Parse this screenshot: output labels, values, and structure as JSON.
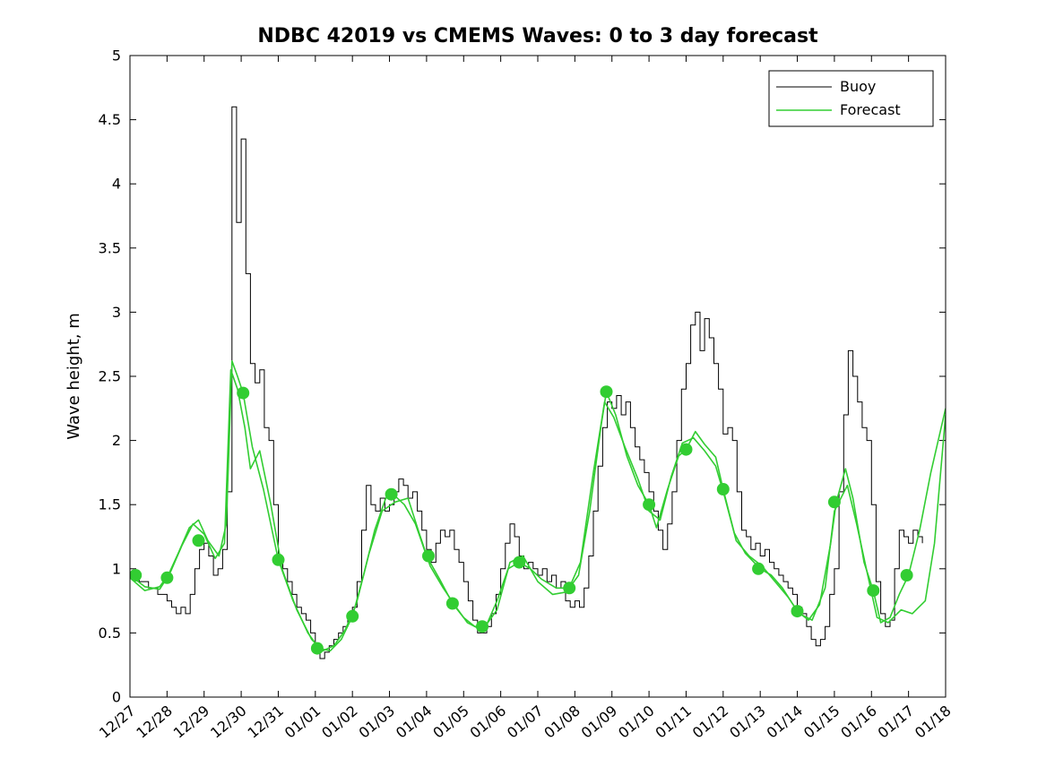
{
  "chart_data": {
    "type": "line",
    "title": "NDBC 42019 vs CMEMS Waves: 0 to 3 day forecast",
    "xlabel": "",
    "ylabel": "Wave height, m",
    "ylim": [
      0,
      5
    ],
    "yticks": [
      0,
      0.5,
      1,
      1.5,
      2,
      2.5,
      3,
      3.5,
      4,
      4.5,
      5
    ],
    "ytick_labels": [
      "0",
      "0.5",
      "1",
      "1.5",
      "2",
      "2.5",
      "3",
      "3.5",
      "4",
      "4.5",
      "5"
    ],
    "x_span_days": 22,
    "xtick_labels": [
      "12/27",
      "12/28",
      "12/29",
      "12/30",
      "12/31",
      "01/01",
      "01/02",
      "01/03",
      "01/04",
      "01/05",
      "01/06",
      "01/07",
      "01/08",
      "01/09",
      "01/10",
      "01/11",
      "01/12",
      "01/13",
      "01/14",
      "01/15",
      "01/16",
      "01/17",
      "01/18"
    ],
    "grid": false,
    "legend": {
      "position": "upper right",
      "entries": [
        {
          "label": "Buoy",
          "color": "#000000"
        },
        {
          "label": "Forecast",
          "color": "#32cd32"
        }
      ]
    },
    "series": [
      {
        "name": "Buoy",
        "type": "step",
        "color": "#000000",
        "line_width": 1,
        "t0_days": 0,
        "dt_days": 0.125,
        "values": [
          0.95,
          0.95,
          0.9,
          0.9,
          0.85,
          0.85,
          0.8,
          0.8,
          0.75,
          0.7,
          0.65,
          0.7,
          0.65,
          0.8,
          1.0,
          1.15,
          1.2,
          1.1,
          0.95,
          1.0,
          1.15,
          1.6,
          4.6,
          3.7,
          4.35,
          3.3,
          2.6,
          2.45,
          2.55,
          2.1,
          2.0,
          1.5,
          1.05,
          1.0,
          0.9,
          0.8,
          0.7,
          0.65,
          0.6,
          0.5,
          0.4,
          0.3,
          0.35,
          0.4,
          0.45,
          0.5,
          0.55,
          0.6,
          0.7,
          0.9,
          1.3,
          1.65,
          1.5,
          1.45,
          1.55,
          1.45,
          1.5,
          1.6,
          1.7,
          1.65,
          1.55,
          1.6,
          1.45,
          1.3,
          1.15,
          1.05,
          1.2,
          1.3,
          1.25,
          1.3,
          1.15,
          1.05,
          0.9,
          0.75,
          0.6,
          0.5,
          0.5,
          0.55,
          0.65,
          0.8,
          1.0,
          1.2,
          1.35,
          1.25,
          1.1,
          1.0,
          1.05,
          1.0,
          0.95,
          1.0,
          0.9,
          0.95,
          0.85,
          0.9,
          0.75,
          0.7,
          0.75,
          0.7,
          0.85,
          1.1,
          1.45,
          1.8,
          2.1,
          2.3,
          2.25,
          2.35,
          2.2,
          2.3,
          2.1,
          1.95,
          1.85,
          1.75,
          1.6,
          1.45,
          1.3,
          1.15,
          1.35,
          1.6,
          2.0,
          2.4,
          2.6,
          2.9,
          3.0,
          2.7,
          2.95,
          2.8,
          2.6,
          2.4,
          2.05,
          2.1,
          2.0,
          1.6,
          1.3,
          1.25,
          1.15,
          1.2,
          1.1,
          1.15,
          1.05,
          1.0,
          0.95,
          0.9,
          0.85,
          0.8,
          0.7,
          0.65,
          0.55,
          0.45,
          0.4,
          0.45,
          0.55,
          0.8,
          1.0,
          1.6,
          2.2,
          2.7,
          2.5,
          2.3,
          2.1,
          2.0,
          1.5,
          0.9,
          0.65,
          0.55,
          0.6,
          1.0,
          1.3,
          1.25,
          1.2,
          1.3,
          1.25,
          1.2
        ]
      },
      {
        "name": "Forecast run 1",
        "type": "line",
        "color": "#32cd32",
        "line_width": 1.6,
        "points": [
          [
            0,
            0.95
          ],
          [
            0.4,
            0.86
          ],
          [
            0.8,
            0.84
          ],
          [
            1,
            0.93
          ],
          [
            1.3,
            1.12
          ],
          [
            1.6,
            1.32
          ],
          [
            1.85,
            1.38
          ],
          [
            2.1,
            1.22
          ],
          [
            2.4,
            1.1
          ],
          [
            2.6,
            1.35
          ],
          [
            2.75,
            2.62
          ],
          [
            2.9,
            2.5
          ],
          [
            3.05,
            2.37
          ],
          [
            3.3,
            1.95
          ],
          [
            3.6,
            1.62
          ],
          [
            4,
            1.07
          ],
          [
            4.4,
            0.75
          ],
          [
            4.8,
            0.5
          ],
          [
            5.1,
            0.38
          ],
          [
            5.4,
            0.36
          ],
          [
            5.7,
            0.45
          ],
          [
            6,
            0.63
          ],
          [
            6.3,
            0.95
          ],
          [
            6.6,
            1.3
          ],
          [
            6.9,
            1.55
          ],
          [
            7.1,
            1.58
          ],
          [
            7.4,
            1.5
          ],
          [
            7.7,
            1.35
          ],
          [
            8,
            1.1
          ],
          [
            8.35,
            0.92
          ],
          [
            8.7,
            0.73
          ],
          [
            9,
            0.62
          ],
          [
            9.3,
            0.55
          ],
          [
            9.6,
            0.55
          ],
          [
            9.9,
            0.75
          ],
          [
            10.2,
            1.0
          ],
          [
            10.5,
            1.05
          ],
          [
            10.8,
            1.0
          ],
          [
            11.1,
            0.92
          ],
          [
            11.5,
            0.85
          ],
          [
            11.85,
            0.85
          ],
          [
            12.1,
            0.95
          ],
          [
            12.4,
            1.45
          ],
          [
            12.7,
            2.1
          ],
          [
            12.85,
            2.38
          ],
          [
            13.1,
            2.2
          ],
          [
            13.4,
            1.88
          ],
          [
            13.7,
            1.65
          ],
          [
            14,
            1.5
          ],
          [
            14.2,
            1.32
          ],
          [
            14.5,
            1.62
          ],
          [
            14.8,
            1.88
          ],
          [
            15,
            1.93
          ],
          [
            15.25,
            2.07
          ],
          [
            15.5,
            1.97
          ],
          [
            15.8,
            1.87
          ],
          [
            16,
            1.62
          ],
          [
            16.3,
            1.28
          ],
          [
            16.6,
            1.12
          ],
          [
            17,
            1.0
          ],
          [
            17.3,
            0.95
          ],
          [
            17.6,
            0.85
          ],
          [
            18,
            0.67
          ],
          [
            18.3,
            0.6
          ],
          [
            18.6,
            0.72
          ],
          [
            18.9,
            1.2
          ],
          [
            19.05,
            1.52
          ],
          [
            19.3,
            1.78
          ],
          [
            19.5,
            1.55
          ],
          [
            19.8,
            1.05
          ],
          [
            20.05,
            0.83
          ],
          [
            20.25,
            0.58
          ],
          [
            20.5,
            0.62
          ],
          [
            20.75,
            0.8
          ],
          [
            21,
            0.95
          ],
          [
            21.3,
            1.3
          ],
          [
            21.6,
            1.75
          ],
          [
            22,
            2.25
          ]
        ]
      },
      {
        "name": "Forecast run 2",
        "type": "line",
        "color": "#32cd32",
        "line_width": 1.6,
        "points": [
          [
            0,
            0.93
          ],
          [
            0.4,
            0.83
          ],
          [
            0.8,
            0.86
          ],
          [
            1.1,
            0.98
          ],
          [
            1.4,
            1.18
          ],
          [
            1.7,
            1.35
          ],
          [
            2,
            1.27
          ],
          [
            2.3,
            1.08
          ],
          [
            2.55,
            1.2
          ],
          [
            2.72,
            2.55
          ],
          [
            2.9,
            2.4
          ],
          [
            3.1,
            2.1
          ],
          [
            3.25,
            1.78
          ],
          [
            3.5,
            1.92
          ],
          [
            3.8,
            1.5
          ],
          [
            4.1,
            1.0
          ],
          [
            4.5,
            0.68
          ],
          [
            4.9,
            0.45
          ],
          [
            5.2,
            0.36
          ],
          [
            5.5,
            0.4
          ],
          [
            5.8,
            0.52
          ],
          [
            6.1,
            0.72
          ],
          [
            6.45,
            1.12
          ],
          [
            6.8,
            1.45
          ],
          [
            7.15,
            1.52
          ],
          [
            7.5,
            1.55
          ],
          [
            7.8,
            1.28
          ],
          [
            8.1,
            1.02
          ],
          [
            8.45,
            0.85
          ],
          [
            8.8,
            0.7
          ],
          [
            9.1,
            0.58
          ],
          [
            9.5,
            0.52
          ],
          [
            9.9,
            0.68
          ],
          [
            10.25,
            1.05
          ],
          [
            10.6,
            1.1
          ],
          [
            11,
            0.9
          ],
          [
            11.4,
            0.8
          ],
          [
            11.8,
            0.82
          ],
          [
            12.15,
            1.05
          ],
          [
            12.5,
            1.75
          ],
          [
            12.8,
            2.3
          ],
          [
            13.05,
            2.18
          ],
          [
            13.35,
            1.95
          ],
          [
            13.7,
            1.7
          ],
          [
            14,
            1.45
          ],
          [
            14.3,
            1.38
          ],
          [
            14.6,
            1.72
          ],
          [
            14.9,
            1.98
          ],
          [
            15.2,
            2.02
          ],
          [
            15.5,
            1.92
          ],
          [
            15.8,
            1.8
          ],
          [
            16.05,
            1.55
          ],
          [
            16.35,
            1.22
          ],
          [
            16.7,
            1.1
          ],
          [
            17.05,
            1.02
          ],
          [
            17.4,
            0.9
          ],
          [
            17.75,
            0.78
          ],
          [
            18.05,
            0.65
          ],
          [
            18.4,
            0.6
          ],
          [
            18.75,
            0.85
          ],
          [
            19,
            1.45
          ],
          [
            19.35,
            1.65
          ],
          [
            19.6,
            1.35
          ],
          [
            19.9,
            0.95
          ],
          [
            20.15,
            0.62
          ],
          [
            20.45,
            0.58
          ],
          [
            20.8,
            0.68
          ],
          [
            21.1,
            0.65
          ],
          [
            21.45,
            0.75
          ],
          [
            21.7,
            1.2
          ],
          [
            22,
            2.2
          ]
        ]
      },
      {
        "name": "Forecast markers",
        "type": "markers",
        "color": "#32cd32",
        "marker_radius": 7,
        "points": [
          [
            0.15,
            0.95
          ],
          [
            1,
            0.93
          ],
          [
            1.85,
            1.22
          ],
          [
            3.05,
            2.37
          ],
          [
            4,
            1.07
          ],
          [
            5.05,
            0.38
          ],
          [
            6,
            0.63
          ],
          [
            7.05,
            1.58
          ],
          [
            8.05,
            1.1
          ],
          [
            8.7,
            0.73
          ],
          [
            9.5,
            0.55
          ],
          [
            10.5,
            1.05
          ],
          [
            11.85,
            0.85
          ],
          [
            12.85,
            2.38
          ],
          [
            14,
            1.5
          ],
          [
            15,
            1.93
          ],
          [
            16,
            1.62
          ],
          [
            16.95,
            1.0
          ],
          [
            18,
            0.67
          ],
          [
            19,
            1.52
          ],
          [
            20.05,
            0.83
          ],
          [
            20.95,
            0.95
          ]
        ]
      }
    ]
  }
}
